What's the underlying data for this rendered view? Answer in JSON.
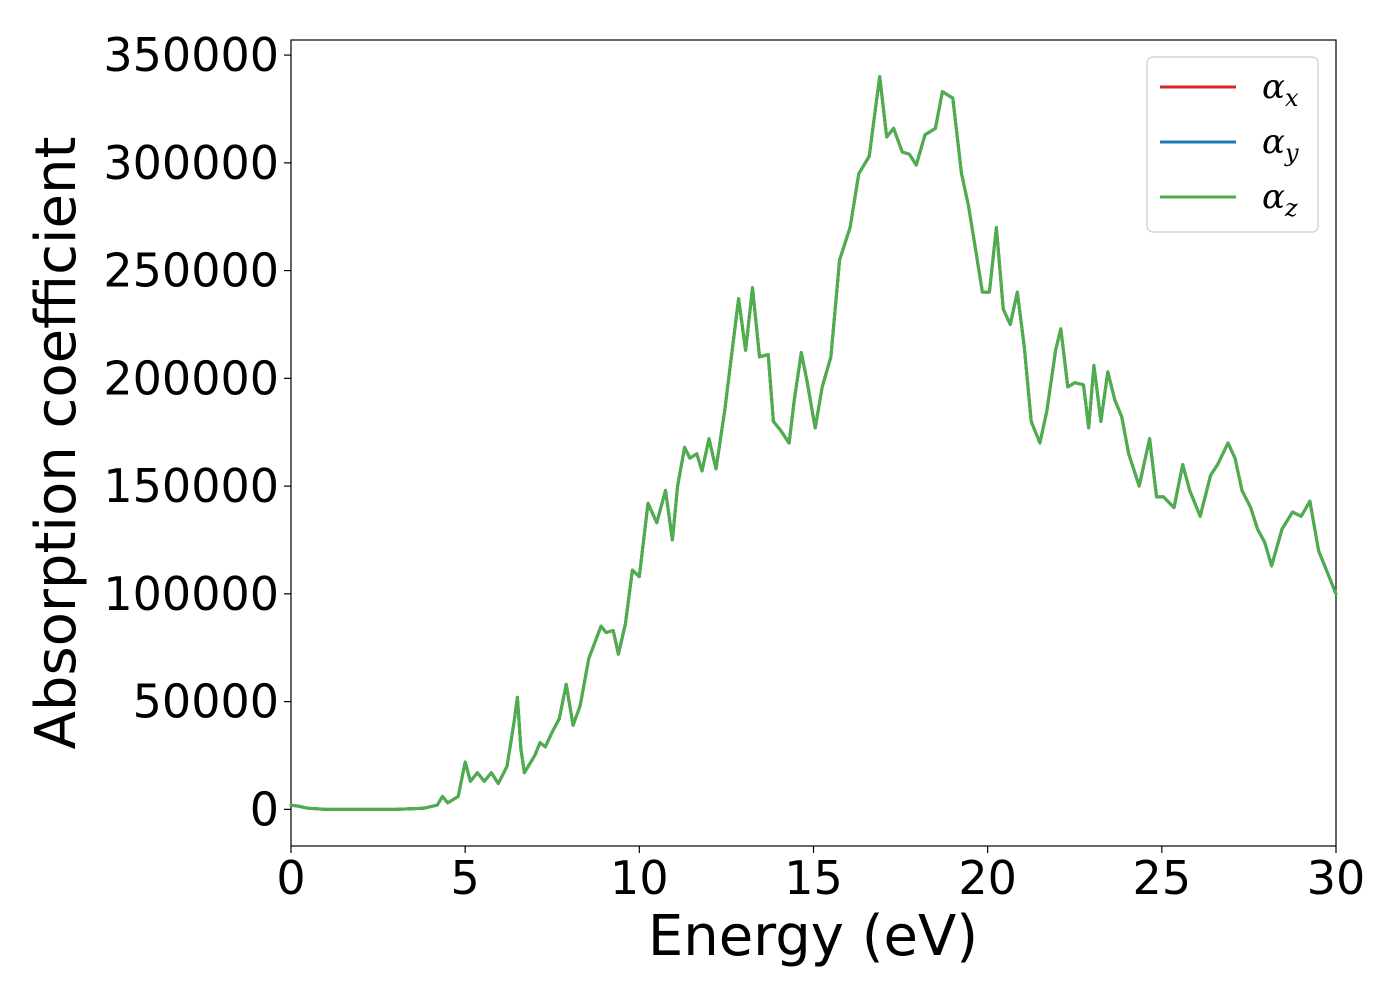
{
  "chart_data": {
    "type": "line",
    "xlabel": "Energy (eV)",
    "ylabel": "Absorption coefficient",
    "xlim": [
      0,
      30
    ],
    "ylim": [
      -17000,
      357000
    ],
    "xticks": [
      0,
      5,
      10,
      15,
      20,
      25,
      30
    ],
    "xtick_labels": [
      "0",
      "5",
      "10",
      "15",
      "20",
      "25",
      "30"
    ],
    "yticks": [
      0,
      50000,
      100000,
      150000,
      200000,
      250000,
      300000,
      350000
    ],
    "ytick_labels": [
      "0",
      "50000",
      "100000",
      "150000",
      "200000",
      "250000",
      "300000",
      "350000"
    ],
    "grid": false,
    "legend_position": "top-right",
    "x": [
      0.0,
      0.2,
      0.5,
      1.0,
      2.0,
      3.0,
      3.8,
      4.2,
      4.35,
      4.5,
      4.8,
      5.0,
      5.15,
      5.35,
      5.55,
      5.75,
      5.95,
      6.2,
      6.4,
      6.5,
      6.6,
      6.7,
      7.0,
      7.15,
      7.3,
      7.5,
      7.7,
      7.9,
      8.1,
      8.3,
      8.55,
      8.9,
      9.05,
      9.25,
      9.4,
      9.6,
      9.8,
      10.0,
      10.25,
      10.5,
      10.75,
      10.95,
      11.1,
      11.3,
      11.45,
      11.65,
      11.8,
      12.0,
      12.2,
      12.45,
      12.85,
      13.05,
      13.25,
      13.45,
      13.7,
      13.85,
      14.05,
      14.3,
      14.45,
      14.65,
      14.8,
      15.05,
      15.25,
      15.5,
      15.75,
      16.05,
      16.3,
      16.6,
      16.9,
      17.1,
      17.3,
      17.55,
      17.75,
      17.95,
      18.2,
      18.5,
      18.7,
      19.0,
      19.25,
      19.45,
      19.65,
      19.85,
      20.05,
      20.25,
      20.45,
      20.65,
      20.85,
      21.05,
      21.25,
      21.5,
      21.7,
      21.95,
      22.1,
      22.3,
      22.5,
      22.75,
      22.9,
      23.05,
      23.25,
      23.45,
      23.65,
      23.85,
      24.05,
      24.35,
      24.65,
      24.85,
      25.05,
      25.35,
      25.6,
      25.8,
      26.1,
      26.4,
      26.6,
      26.9,
      27.1,
      27.3,
      27.55,
      27.75,
      27.95,
      28.15,
      28.45,
      28.75,
      29.0,
      29.25,
      29.5,
      29.75,
      30.0
    ],
    "series": [
      {
        "name": "α_x",
        "color": "#d62728",
        "values": [
          2000,
          1500,
          500,
          0,
          0,
          0,
          500,
          2000,
          6000,
          3000,
          6000,
          22000,
          13000,
          17000,
          13000,
          17000,
          12000,
          20000,
          40000,
          52000,
          28000,
          17000,
          25000,
          31000,
          29000,
          36000,
          42000,
          58000,
          39000,
          48000,
          70000,
          85000,
          82000,
          83000,
          72000,
          86000,
          111000,
          108000,
          142000,
          133000,
          148000,
          125000,
          150000,
          168000,
          163000,
          165000,
          157000,
          172000,
          158000,
          185000,
          237000,
          213000,
          242000,
          210000,
          211000,
          180000,
          176000,
          170000,
          190000,
          212000,
          200000,
          177000,
          196000,
          210000,
          255000,
          270000,
          295000,
          303000,
          340000,
          312000,
          316000,
          305000,
          304000,
          299000,
          313000,
          316000,
          333000,
          330000,
          295000,
          280000,
          260000,
          240000,
          240000,
          270000,
          232000,
          225000,
          240000,
          215000,
          180000,
          170000,
          185000,
          213000,
          223000,
          196000,
          198000,
          197000,
          177000,
          206000,
          180000,
          203000,
          190000,
          182000,
          165000,
          150000,
          172000,
          145000,
          145000,
          140000,
          160000,
          148000,
          136000,
          155000,
          160000,
          170000,
          163000,
          148000,
          140000,
          130000,
          124000,
          113000,
          130000,
          138000,
          136000,
          143000,
          120000,
          110000,
          100000
        ]
      },
      {
        "name": "α_y",
        "color": "#1f77b4",
        "values": [
          2000,
          1500,
          500,
          0,
          0,
          0,
          500,
          2000,
          6000,
          3000,
          6000,
          22000,
          13000,
          17000,
          13000,
          17000,
          12000,
          20000,
          40000,
          52000,
          28000,
          17000,
          25000,
          31000,
          29000,
          36000,
          42000,
          58000,
          39000,
          48000,
          70000,
          85000,
          82000,
          83000,
          72000,
          86000,
          111000,
          108000,
          142000,
          133000,
          148000,
          125000,
          150000,
          168000,
          163000,
          165000,
          157000,
          172000,
          158000,
          185000,
          237000,
          213000,
          242000,
          210000,
          211000,
          180000,
          176000,
          170000,
          190000,
          212000,
          200000,
          177000,
          196000,
          210000,
          255000,
          270000,
          295000,
          303000,
          340000,
          312000,
          316000,
          305000,
          304000,
          299000,
          313000,
          316000,
          333000,
          330000,
          295000,
          280000,
          260000,
          240000,
          240000,
          270000,
          232000,
          225000,
          240000,
          215000,
          180000,
          170000,
          185000,
          213000,
          223000,
          196000,
          198000,
          197000,
          177000,
          206000,
          180000,
          203000,
          190000,
          182000,
          165000,
          150000,
          172000,
          145000,
          145000,
          140000,
          160000,
          148000,
          136000,
          155000,
          160000,
          170000,
          163000,
          148000,
          140000,
          130000,
          124000,
          113000,
          130000,
          138000,
          136000,
          143000,
          120000,
          110000,
          100000
        ]
      },
      {
        "name": "α_z",
        "color": "#4daf4a",
        "values": [
          2000,
          1500,
          500,
          0,
          0,
          0,
          500,
          2000,
          6000,
          3000,
          6000,
          22000,
          13000,
          17000,
          13000,
          17000,
          12000,
          20000,
          40000,
          52000,
          28000,
          17000,
          25000,
          31000,
          29000,
          36000,
          42000,
          58000,
          39000,
          48000,
          70000,
          85000,
          82000,
          83000,
          72000,
          86000,
          111000,
          108000,
          142000,
          133000,
          148000,
          125000,
          150000,
          168000,
          163000,
          165000,
          157000,
          172000,
          158000,
          185000,
          237000,
          213000,
          242000,
          210000,
          211000,
          180000,
          176000,
          170000,
          190000,
          212000,
          200000,
          177000,
          196000,
          210000,
          255000,
          270000,
          295000,
          303000,
          340000,
          312000,
          316000,
          305000,
          304000,
          299000,
          313000,
          316000,
          333000,
          330000,
          295000,
          280000,
          260000,
          240000,
          240000,
          270000,
          232000,
          225000,
          240000,
          215000,
          180000,
          170000,
          185000,
          213000,
          223000,
          196000,
          198000,
          197000,
          177000,
          206000,
          180000,
          203000,
          190000,
          182000,
          165000,
          150000,
          172000,
          145000,
          145000,
          140000,
          160000,
          148000,
          136000,
          155000,
          160000,
          170000,
          163000,
          148000,
          140000,
          130000,
          124000,
          113000,
          130000,
          138000,
          136000,
          143000,
          120000,
          110000,
          100000
        ]
      }
    ],
    "legend": [
      {
        "symbol": "α",
        "sub": "x",
        "color": "#d62728"
      },
      {
        "symbol": "α",
        "sub": "y",
        "color": "#1f77b4"
      },
      {
        "symbol": "α",
        "sub": "z",
        "color": "#4daf4a"
      }
    ]
  }
}
